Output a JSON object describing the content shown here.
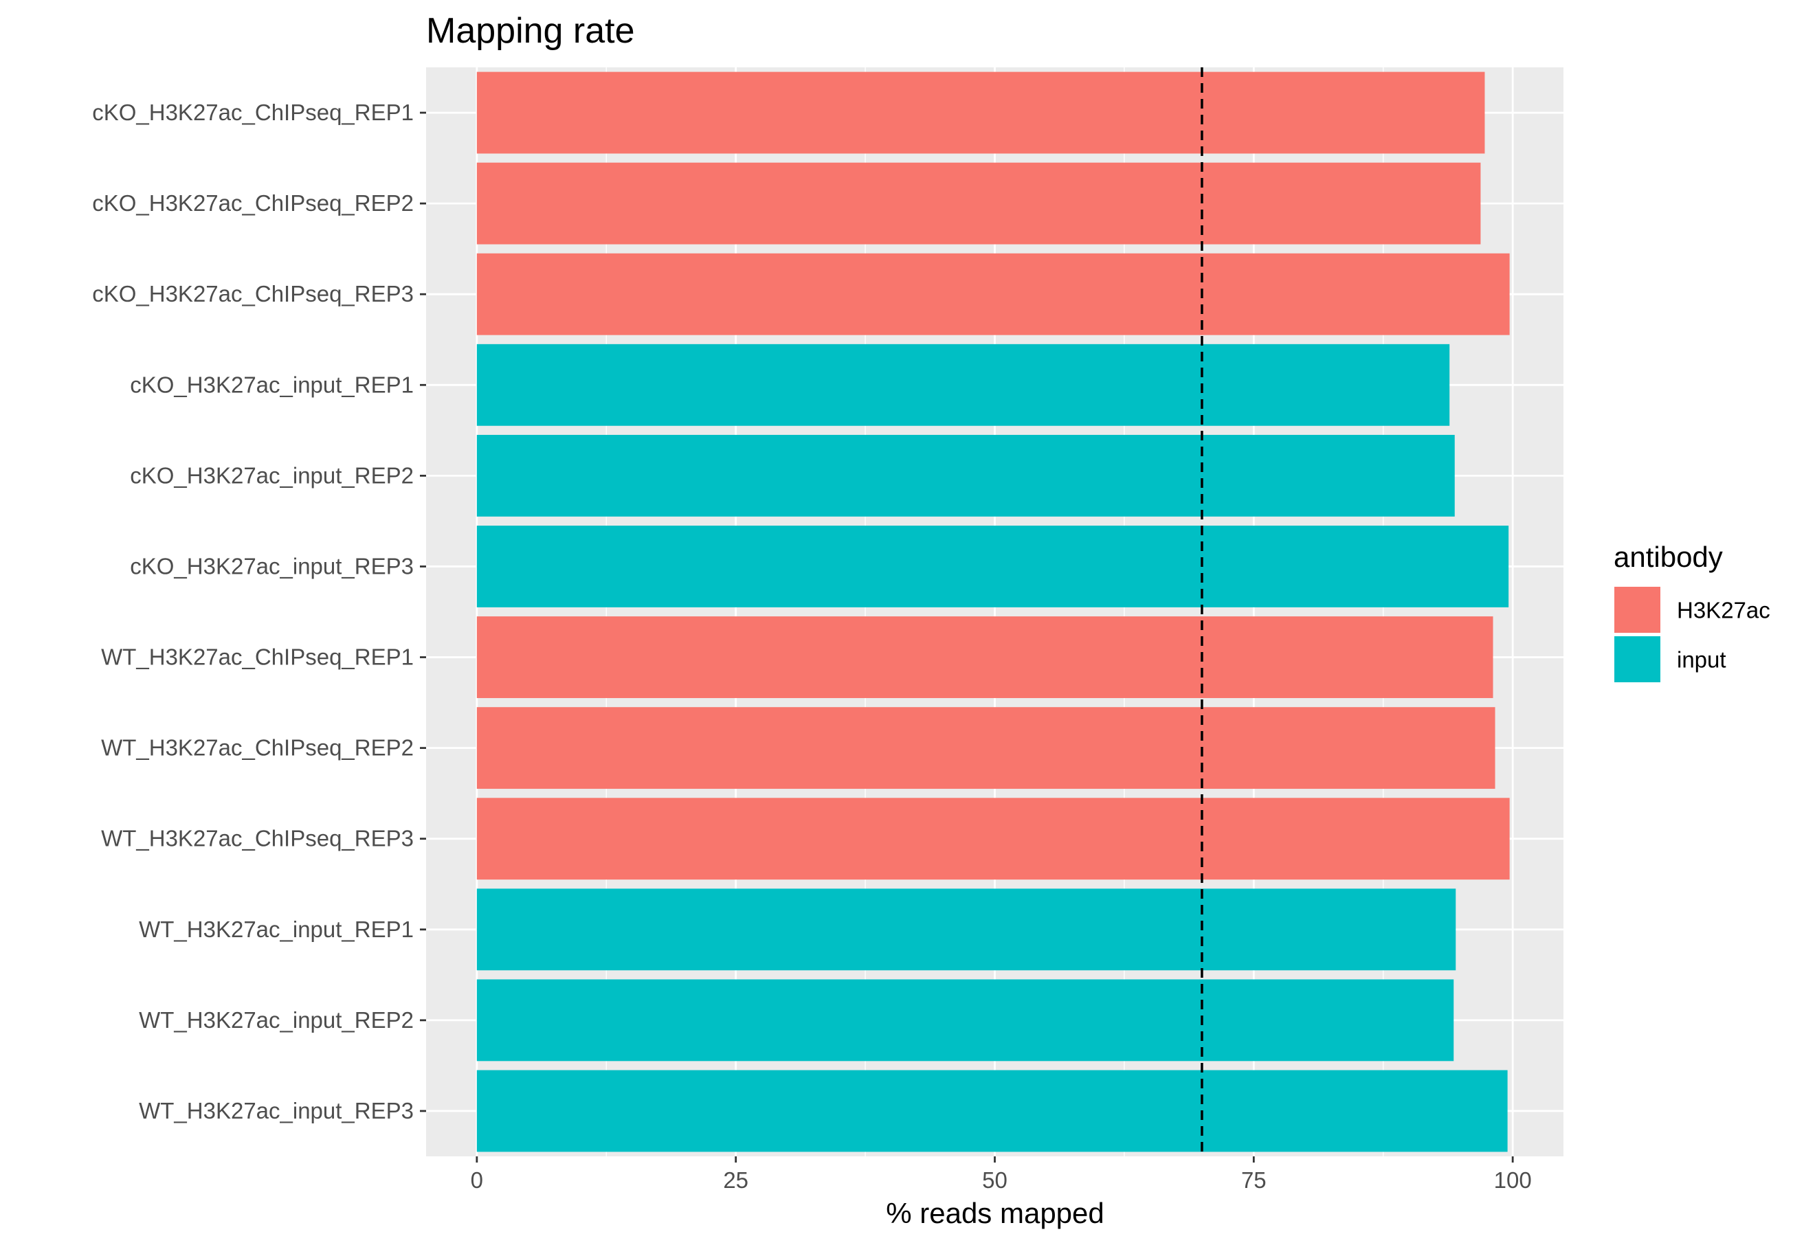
{
  "chart_data": {
    "type": "bar",
    "orientation": "horizontal",
    "title": "Mapping rate",
    "xlabel": "% reads mapped",
    "ylabel": "",
    "xlim": [
      -4.9,
      104.9
    ],
    "xticks": [
      0,
      25,
      50,
      75,
      100
    ],
    "grid": true,
    "reference_line": {
      "x": 70,
      "style": "dashed",
      "color": "#000000"
    },
    "categories": [
      "cKO_H3K27ac_ChIPseq_REP1",
      "cKO_H3K27ac_ChIPseq_REP2",
      "cKO_H3K27ac_ChIPseq_REP3",
      "cKO_H3K27ac_input_REP1",
      "cKO_H3K27ac_input_REP2",
      "cKO_H3K27ac_input_REP3",
      "WT_H3K27ac_ChIPseq_REP1",
      "WT_H3K27ac_ChIPseq_REP2",
      "WT_H3K27ac_ChIPseq_REP3",
      "WT_H3K27ac_input_REP1",
      "WT_H3K27ac_input_REP2",
      "WT_H3K27ac_input_REP3"
    ],
    "values": [
      97.3,
      96.9,
      99.7,
      93.9,
      94.4,
      99.6,
      98.1,
      98.3,
      99.7,
      94.5,
      94.3,
      99.5
    ],
    "groups": [
      "H3K27ac",
      "H3K27ac",
      "H3K27ac",
      "input",
      "input",
      "input",
      "H3K27ac",
      "H3K27ac",
      "H3K27ac",
      "input",
      "input",
      "input"
    ],
    "legend": {
      "title": "antibody",
      "position": "right",
      "entries": [
        {
          "name": "H3K27ac",
          "color": "#F8766D"
        },
        {
          "name": "input",
          "color": "#00BFC4"
        }
      ]
    },
    "panel_background": "#EBEBEB",
    "grid_color": "#FFFFFF"
  }
}
